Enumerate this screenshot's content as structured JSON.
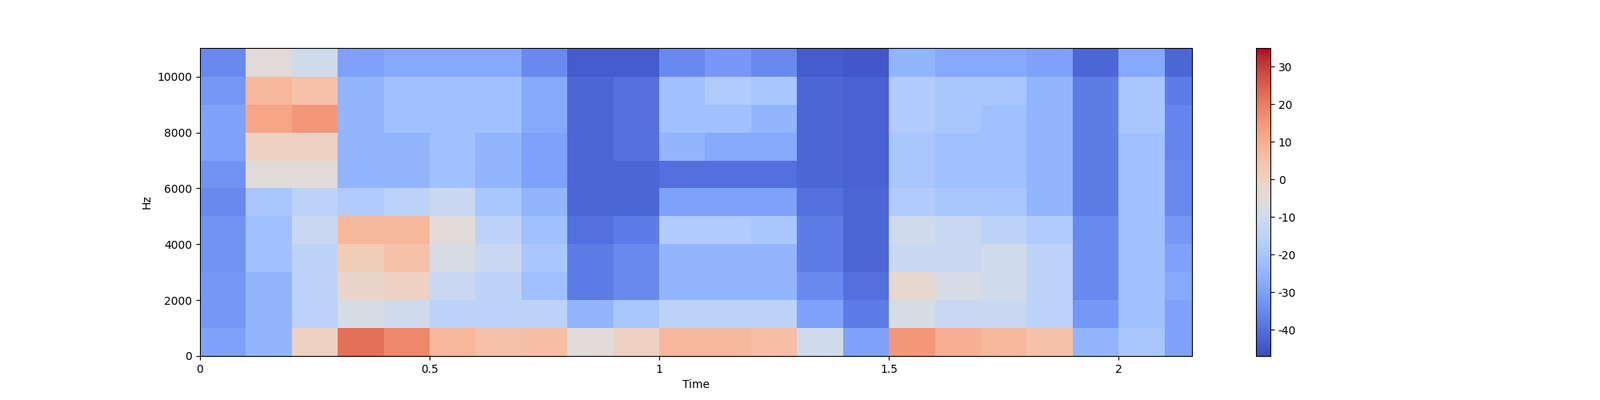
{
  "chart_data": {
    "type": "heatmap",
    "x_label": "Time",
    "y_label": "Hz",
    "color": "coolwarm",
    "time_edges": [
      0,
      0.1,
      0.2,
      0.3,
      0.4,
      0.5,
      0.6,
      0.7,
      0.8,
      0.9,
      1.0,
      1.1,
      1.2,
      1.3,
      1.4,
      1.5,
      1.6,
      1.7,
      1.8,
      1.9,
      2.0,
      2.1,
      2.16
    ],
    "freq_edges": [
      0,
      1000,
      2000,
      3000,
      4000,
      5000,
      6000,
      7000,
      8000,
      9000,
      10000,
      11025
    ],
    "cells": [
      [
        -30,
        -25,
        0,
        22,
        18,
        8,
        5,
        6,
        -5,
        0,
        8,
        8,
        6,
        -10,
        -30,
        15,
        10,
        8,
        5,
        -25,
        -20,
        -30
      ],
      [
        -32,
        -25,
        -15,
        -8,
        -10,
        -15,
        -15,
        -15,
        -25,
        -20,
        -15,
        -15,
        -15,
        -30,
        -38,
        -8,
        -12,
        -12,
        -15,
        -32,
        -22,
        -30
      ],
      [
        -32,
        -25,
        -15,
        -2,
        0,
        -12,
        -15,
        -22,
        -38,
        -35,
        -25,
        -25,
        -25,
        -35,
        -40,
        -3,
        -8,
        -10,
        -15,
        -35,
        -22,
        -28
      ],
      [
        -33,
        -22,
        -15,
        2,
        5,
        -8,
        -12,
        -20,
        -38,
        -35,
        -25,
        -25,
        -25,
        -38,
        -42,
        -12,
        -12,
        -10,
        -15,
        -35,
        -22,
        -30
      ],
      [
        -33,
        -22,
        -12,
        8,
        8,
        -5,
        -15,
        -22,
        -40,
        -38,
        -18,
        -18,
        -20,
        -38,
        -42,
        -10,
        -12,
        -15,
        -18,
        -35,
        -22,
        -32
      ],
      [
        -35,
        -20,
        -15,
        -18,
        -15,
        -12,
        -20,
        -25,
        -42,
        -42,
        -30,
        -30,
        -30,
        -40,
        -42,
        -18,
        -20,
        -20,
        -25,
        -38,
        -22,
        -35
      ],
      [
        -33,
        -5,
        -5,
        -25,
        -25,
        -22,
        -25,
        -30,
        -42,
        -42,
        -40,
        -40,
        -40,
        -42,
        -43,
        -20,
        -22,
        -22,
        -25,
        -38,
        -22,
        -35
      ],
      [
        -30,
        0,
        0,
        -25,
        -25,
        -22,
        -25,
        -30,
        -42,
        -40,
        -25,
        -28,
        -28,
        -42,
        -43,
        -20,
        -22,
        -22,
        -25,
        -38,
        -22,
        -36
      ],
      [
        -30,
        12,
        15,
        -25,
        -22,
        -22,
        -22,
        -28,
        -42,
        -40,
        -22,
        -22,
        -25,
        -42,
        -43,
        -18,
        -20,
        -22,
        -25,
        -38,
        -20,
        -36
      ],
      [
        -32,
        8,
        5,
        -25,
        -22,
        -22,
        -22,
        -28,
        -42,
        -40,
        -22,
        -18,
        -20,
        -42,
        -43,
        -18,
        -20,
        -20,
        -25,
        -38,
        -20,
        -38
      ],
      [
        -35,
        -5,
        -10,
        -30,
        -28,
        -28,
        -28,
        -35,
        -44,
        -44,
        -35,
        -32,
        -35,
        -44,
        -45,
        -25,
        -28,
        -28,
        -30,
        -42,
        -28,
        -42
      ]
    ],
    "xlim": [
      0,
      2.16
    ],
    "xticks": [
      0,
      0.5,
      1,
      1.5,
      2
    ],
    "ylim": [
      0,
      11025
    ],
    "yticks": [
      0,
      2000,
      4000,
      6000,
      8000,
      10000
    ],
    "color_range": [
      -47,
      35
    ],
    "color_ticks": [
      -40,
      -30,
      -20,
      -10,
      0,
      10,
      20,
      30
    ]
  }
}
